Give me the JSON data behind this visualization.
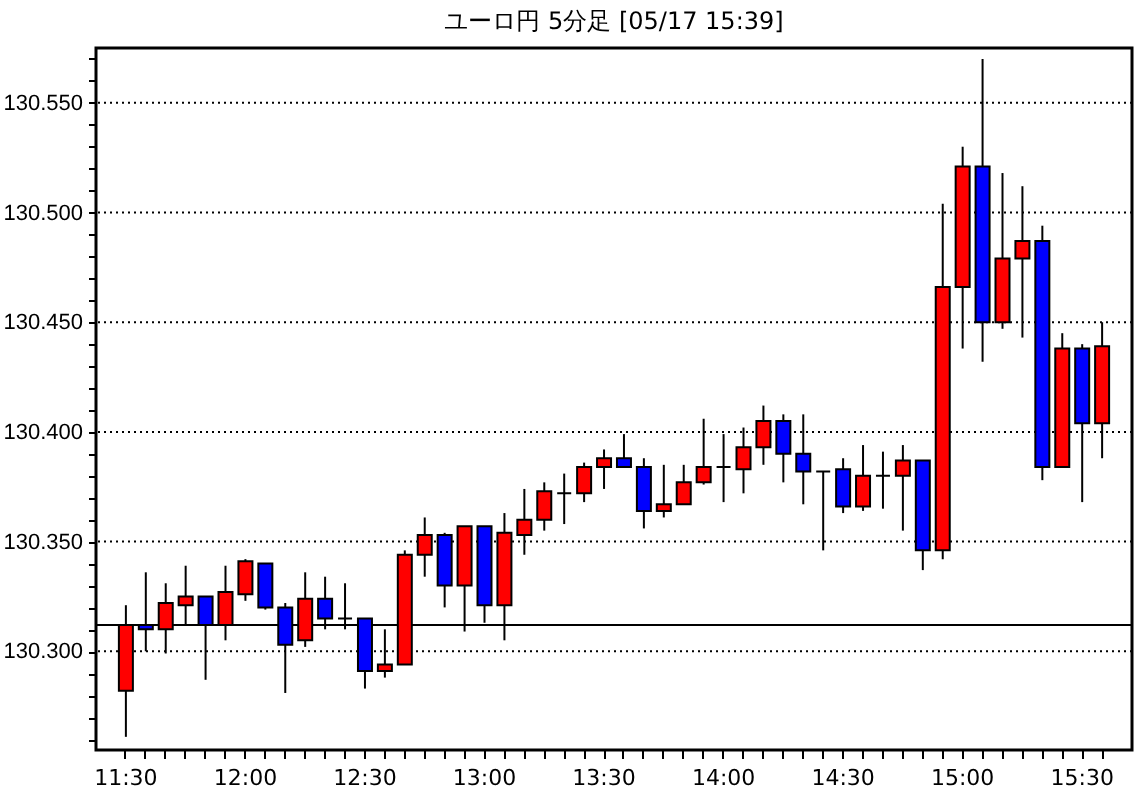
{
  "chart_data": {
    "type": "candlestick",
    "title": "ユーロ円 5分足 [05/17 15:39]",
    "categories": [
      "11:30",
      null,
      null,
      null,
      null,
      null,
      "12:00",
      null,
      null,
      null,
      null,
      null,
      "12:30",
      null,
      null,
      null,
      null,
      null,
      "13:00",
      null,
      null,
      null,
      null,
      null,
      "13:30",
      null,
      null,
      null,
      null,
      null,
      "14:00",
      null,
      null,
      null,
      null,
      null,
      "14:30",
      null,
      null,
      null,
      null,
      null,
      "15:00",
      null,
      null,
      null,
      null,
      null,
      "15:30",
      null
    ],
    "ohlc": [
      [
        130.282,
        130.321,
        130.261,
        130.312
      ],
      [
        130.312,
        130.336,
        130.3,
        130.31
      ],
      [
        130.31,
        130.331,
        130.299,
        130.322
      ],
      [
        130.321,
        130.339,
        130.312,
        130.325
      ],
      [
        130.325,
        130.325,
        130.287,
        130.312
      ],
      [
        130.312,
        130.339,
        130.305,
        130.327
      ],
      [
        130.326,
        130.342,
        130.323,
        130.341
      ],
      [
        130.34,
        130.34,
        130.319,
        130.32
      ],
      [
        130.32,
        130.322,
        130.281,
        130.303
      ],
      [
        130.305,
        130.336,
        130.302,
        130.324
      ],
      [
        130.324,
        130.334,
        130.31,
        130.315
      ],
      [
        130.315,
        130.331,
        130.31,
        130.315
      ],
      [
        130.315,
        130.315,
        130.283,
        130.291
      ],
      [
        130.291,
        130.31,
        130.288,
        130.294
      ],
      [
        130.294,
        130.346,
        130.294,
        130.344
      ],
      [
        130.344,
        130.361,
        130.334,
        130.353
      ],
      [
        130.353,
        130.354,
        130.32,
        130.33
      ],
      [
        130.33,
        130.357,
        130.309,
        130.357
      ],
      [
        130.357,
        130.357,
        130.313,
        130.321
      ],
      [
        130.321,
        130.363,
        130.305,
        130.354
      ],
      [
        130.353,
        130.374,
        130.344,
        130.36
      ],
      [
        130.36,
        130.377,
        130.355,
        130.373
      ],
      [
        130.372,
        130.381,
        130.358,
        130.372
      ],
      [
        130.372,
        130.386,
        130.368,
        130.384
      ],
      [
        130.384,
        130.392,
        130.374,
        130.388
      ],
      [
        130.388,
        130.399,
        130.384,
        130.384
      ],
      [
        130.384,
        130.388,
        130.356,
        130.364
      ],
      [
        130.364,
        130.385,
        130.361,
        130.367
      ],
      [
        130.367,
        130.385,
        130.367,
        130.377
      ],
      [
        130.377,
        130.406,
        130.376,
        130.384
      ],
      [
        130.384,
        130.399,
        130.368,
        130.384
      ],
      [
        130.383,
        130.402,
        130.372,
        130.393
      ],
      [
        130.393,
        130.412,
        130.385,
        130.405
      ],
      [
        130.405,
        130.408,
        130.377,
        130.39
      ],
      [
        130.39,
        130.408,
        130.367,
        130.382
      ],
      [
        130.382,
        130.382,
        130.346,
        130.382
      ],
      [
        130.383,
        130.388,
        130.363,
        130.366
      ],
      [
        130.366,
        130.394,
        130.364,
        130.38
      ],
      [
        130.38,
        130.391,
        130.365,
        130.38
      ],
      [
        130.38,
        130.394,
        130.355,
        130.387
      ],
      [
        130.387,
        130.387,
        130.337,
        130.346
      ],
      [
        130.346,
        130.504,
        130.342,
        130.466
      ],
      [
        130.466,
        130.53,
        130.438,
        130.521
      ],
      [
        130.521,
        130.57,
        130.432,
        130.45
      ],
      [
        130.45,
        130.518,
        130.447,
        130.479
      ],
      [
        130.479,
        130.512,
        130.443,
        130.487
      ],
      [
        130.487,
        130.494,
        130.378,
        130.384
      ],
      [
        130.384,
        130.445,
        130.384,
        130.438
      ],
      [
        130.438,
        130.44,
        130.368,
        130.404
      ],
      [
        130.404,
        130.45,
        130.388,
        130.439
      ]
    ],
    "colors": [
      "#ff0000",
      "#0000ff",
      "#ff0000",
      "#ff0000",
      "#0000ff",
      "#ff0000",
      "#ff0000",
      "#0000ff",
      "#0000ff",
      "#ff0000",
      "#0000ff",
      "#000000",
      "#0000ff",
      "#ff0000",
      "#ff0000",
      "#ff0000",
      "#0000ff",
      "#ff0000",
      "#0000ff",
      "#ff0000",
      "#ff0000",
      "#ff0000",
      "#000000",
      "#ff0000",
      "#ff0000",
      "#0000ff",
      "#0000ff",
      "#ff0000",
      "#ff0000",
      "#ff0000",
      "#000000",
      "#ff0000",
      "#ff0000",
      "#0000ff",
      "#0000ff",
      "#000000",
      "#0000ff",
      "#ff0000",
      "#000000",
      "#ff0000",
      "#0000ff",
      "#ff0000",
      "#ff0000",
      "#0000ff",
      "#ff0000",
      "#ff0000",
      "#0000ff",
      "#ff0000",
      "#0000ff",
      "#ff0000"
    ],
    "ylim": [
      130.255,
      130.575
    ],
    "yticks": [
      {
        "value": 130.26,
        "label": null
      },
      {
        "value": 130.27,
        "label": null
      },
      {
        "value": 130.28,
        "label": null
      },
      {
        "value": 130.29,
        "label": null
      },
      {
        "value": 130.3,
        "label": "130.300"
      },
      {
        "value": 130.31,
        "label": null
      },
      {
        "value": 130.32,
        "label": null
      },
      {
        "value": 130.33,
        "label": null
      },
      {
        "value": 130.34,
        "label": null
      },
      {
        "value": 130.35,
        "label": "130.350"
      },
      {
        "value": 130.36,
        "label": null
      },
      {
        "value": 130.37,
        "label": null
      },
      {
        "value": 130.38,
        "label": null
      },
      {
        "value": 130.39,
        "label": null
      },
      {
        "value": 130.4,
        "label": "130.400"
      },
      {
        "value": 130.41,
        "label": null
      },
      {
        "value": 130.42,
        "label": null
      },
      {
        "value": 130.43,
        "label": null
      },
      {
        "value": 130.44,
        "label": null
      },
      {
        "value": 130.45,
        "label": "130.450"
      },
      {
        "value": 130.46,
        "label": null
      },
      {
        "value": 130.47,
        "label": null
      },
      {
        "value": 130.48,
        "label": null
      },
      {
        "value": 130.49,
        "label": null
      },
      {
        "value": 130.5,
        "label": "130.500"
      },
      {
        "value": 130.51,
        "label": null
      },
      {
        "value": 130.52,
        "label": null
      },
      {
        "value": 130.53,
        "label": null
      },
      {
        "value": 130.54,
        "label": null
      },
      {
        "value": 130.55,
        "label": "130.550"
      },
      {
        "value": 130.56,
        "label": null
      },
      {
        "value": 130.57,
        "label": null
      }
    ],
    "grid": "y",
    "ref_lines": [
      {
        "axis": "y",
        "value": 130.312,
        "color": "#000000"
      }
    ]
  }
}
